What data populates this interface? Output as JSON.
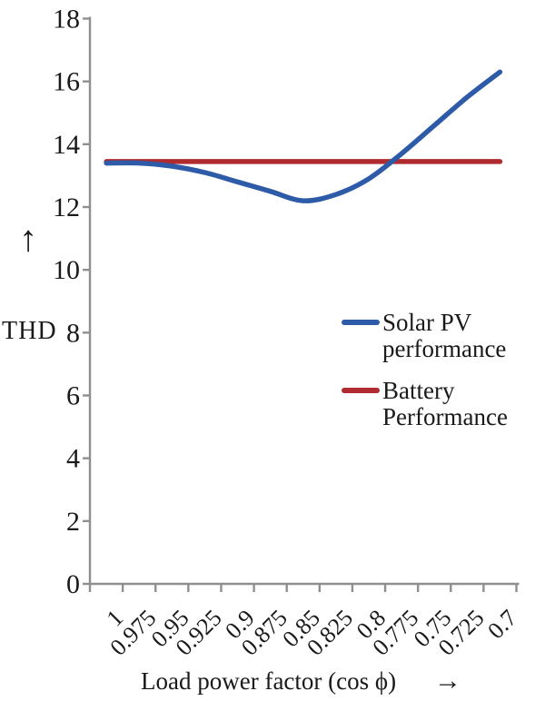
{
  "figure": {
    "y_axis_arrow": "↑",
    "y_axis_label": "THD",
    "x_axis_label": "Load power factor (cos ϕ)",
    "x_axis_arrow": "→"
  },
  "chart_data": {
    "type": "line",
    "title": "",
    "xlabel": "Load power factor (cos ϕ)",
    "ylabel": "THD",
    "x_categories": [
      "1",
      "0.975",
      "0.95",
      "0.925",
      "0.9",
      "0.875",
      "0.85",
      "0.825",
      "0.8",
      "0.775",
      "0.75",
      "0.725",
      "0.7"
    ],
    "y_ticks": [
      0,
      2,
      4,
      6,
      8,
      10,
      12,
      14,
      16,
      18
    ],
    "ylim": [
      0,
      18
    ],
    "grid": false,
    "legend_position": "center-right",
    "series": [
      {
        "name": "Solar PV performance",
        "color": "#2d5ba7",
        "smooth": true,
        "values": [
          13.4,
          13.4,
          13.3,
          13.1,
          12.8,
          12.5,
          12.2,
          12.4,
          12.9,
          13.7,
          14.6,
          15.5,
          16.3
        ]
      },
      {
        "name": "Battery Performance",
        "color": "#b02b2f",
        "smooth": false,
        "values": [
          13.45,
          13.45,
          13.45,
          13.45,
          13.45,
          13.45,
          13.45,
          13.45,
          13.45,
          13.45,
          13.45,
          13.45,
          13.45
        ]
      }
    ],
    "axis_color": "#8f8f8f",
    "text_color": "#1a1a1a"
  }
}
